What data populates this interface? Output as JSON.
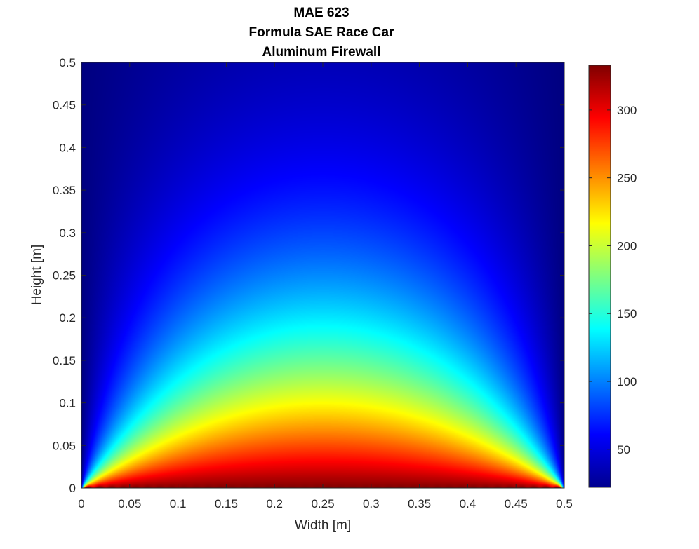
{
  "chart_data": {
    "type": "heatmap",
    "title_lines": [
      "MAE 623",
      "Formula SAE Race Car",
      "Aluminum Firewall"
    ],
    "xlabel": "Width [m]",
    "ylabel": "Height [m]",
    "xlim": [
      0,
      0.5
    ],
    "ylim": [
      0,
      0.5
    ],
    "x_ticks": [
      "0",
      "0.05",
      "0.1",
      "0.15",
      "0.2",
      "0.25",
      "0.3",
      "0.35",
      "0.4",
      "0.45",
      "0.5"
    ],
    "y_ticks": [
      "0",
      "0.05",
      "0.1",
      "0.15",
      "0.2",
      "0.25",
      "0.3",
      "0.35",
      "0.4",
      "0.45",
      "0.5"
    ],
    "colorbar": {
      "colormap": "jet",
      "clim": [
        22,
        333
      ],
      "ticks": [
        "50",
        "100",
        "150",
        "200",
        "250",
        "300"
      ]
    },
    "field": {
      "description_of_values": "temperature field, hottest at bottom center, decaying upward and toward side edges",
      "max_value": 333,
      "min_value": 22,
      "samples": [
        {
          "x": 0.25,
          "y": 0.0,
          "value": 333
        },
        {
          "x": 0.25,
          "y": 0.05,
          "value": 260
        },
        {
          "x": 0.25,
          "y": 0.1,
          "value": 205
        },
        {
          "x": 0.25,
          "y": 0.15,
          "value": 160
        },
        {
          "x": 0.25,
          "y": 0.2,
          "value": 130
        },
        {
          "x": 0.25,
          "y": 0.3,
          "value": 85
        },
        {
          "x": 0.25,
          "y": 0.4,
          "value": 55
        },
        {
          "x": 0.25,
          "y": 0.5,
          "value": 35
        }
      ]
    }
  }
}
